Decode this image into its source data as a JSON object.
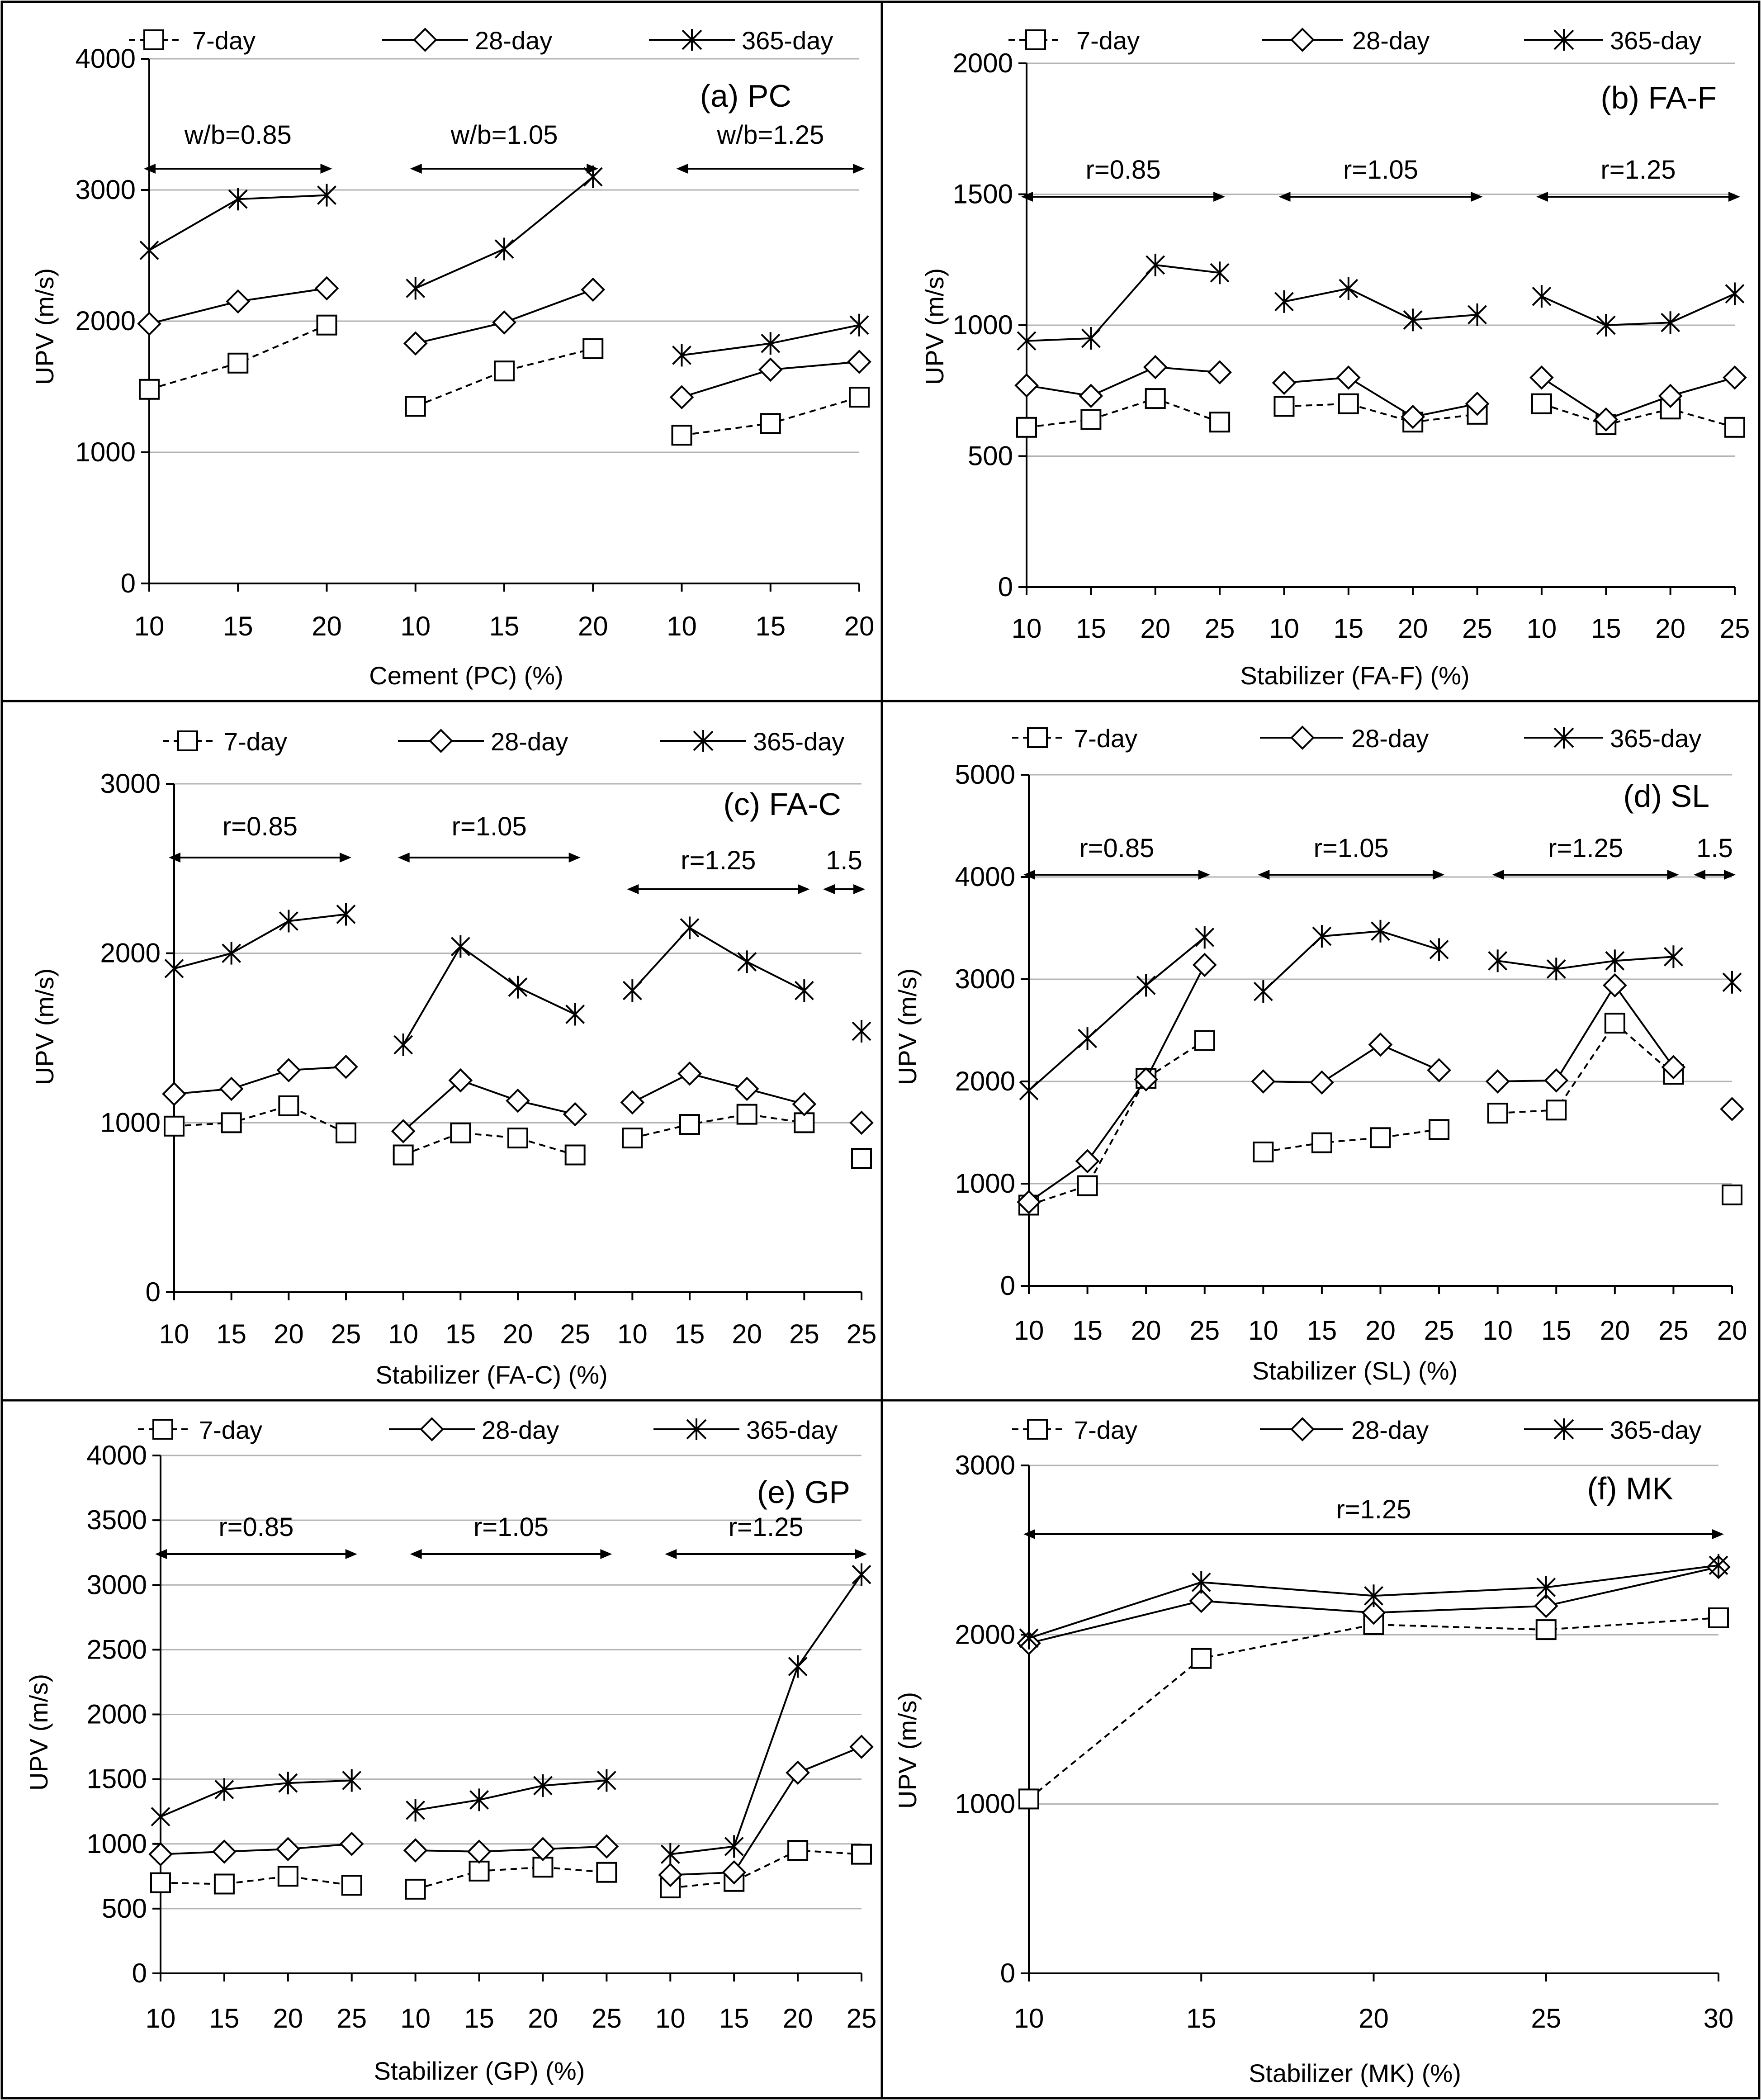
{
  "legend": {
    "day7": "7-day",
    "day28": "28-day",
    "day365": "365-day"
  },
  "chart_data": [
    {
      "type": "line",
      "title": "(a) PC",
      "xlabel": "Cement (PC) (%)",
      "ylabel": "UPV (m/s)",
      "ylim": [
        0,
        4000
      ],
      "yticks": [
        0,
        1000,
        2000,
        3000,
        4000
      ],
      "x_tick_labels": [
        "10",
        "15",
        "20",
        "10",
        "15",
        "20",
        "10",
        "15",
        "20"
      ],
      "groups": [
        {
          "label": "w/b=0.85",
          "indices": [
            0,
            2
          ]
        },
        {
          "label": "w/b=1.05",
          "indices": [
            3,
            5
          ]
        },
        {
          "label": "w/b=1.25",
          "indices": [
            6,
            8
          ]
        }
      ],
      "series": [
        {
          "name": "7-day",
          "segments": [
            [
              0,
              1,
              2
            ],
            [
              3,
              4,
              5
            ],
            [
              6,
              7,
              8
            ]
          ],
          "values": [
            1480,
            1680,
            1970,
            1350,
            1620,
            1790,
            1130,
            1220,
            1420
          ]
        },
        {
          "name": "28-day",
          "segments": [
            [
              0,
              1,
              2
            ],
            [
              3,
              4,
              5
            ],
            [
              6,
              7,
              8
            ]
          ],
          "values": [
            1980,
            2150,
            2250,
            1830,
            1990,
            2240,
            1420,
            1630,
            1690
          ]
        },
        {
          "name": "365-day",
          "segments": [
            [
              0,
              1,
              2
            ],
            [
              3,
              4,
              5
            ],
            [
              6,
              7,
              8
            ]
          ],
          "values": [
            2540,
            2930,
            2960,
            2250,
            2550,
            3100,
            1740,
            1830,
            1970
          ]
        }
      ]
    },
    {
      "type": "line",
      "title": "(b) FA-F",
      "xlabel": "Stabilizer (FA-F) (%)",
      "ylabel": "UPV (m/s)",
      "ylim": [
        0,
        2000
      ],
      "yticks": [
        0,
        500,
        1000,
        1500,
        2000
      ],
      "x_tick_labels": [
        "10",
        "15",
        "20",
        "25",
        "10",
        "15",
        "20",
        "25",
        "10",
        "15",
        "20",
        "25"
      ],
      "groups": [
        {
          "label": "r=0.85",
          "indices": [
            0,
            3
          ]
        },
        {
          "label": "r=1.05",
          "indices": [
            4,
            7
          ]
        },
        {
          "label": "r=1.25",
          "indices": [
            8,
            11
          ]
        }
      ],
      "series": [
        {
          "name": "7-day",
          "segments": [
            [
              0,
              1,
              2,
              3
            ],
            [
              4,
              5,
              6,
              7
            ],
            [
              8,
              9,
              10,
              11
            ]
          ],
          "values": [
            610,
            640,
            720,
            630,
            690,
            700,
            630,
            660,
            700,
            620,
            680,
            610
          ]
        },
        {
          "name": "28-day",
          "segments": [
            [
              0,
              1,
              2,
              3
            ],
            [
              4,
              5,
              6,
              7
            ],
            [
              8,
              9,
              10,
              11
            ]
          ],
          "values": [
            770,
            730,
            840,
            820,
            780,
            800,
            650,
            700,
            800,
            640,
            730,
            800
          ]
        },
        {
          "name": "365-day",
          "segments": [
            [
              0,
              1,
              2,
              3
            ],
            [
              4,
              5,
              6,
              7
            ],
            [
              8,
              9,
              10,
              11
            ]
          ],
          "values": [
            940,
            950,
            1230,
            1200,
            1090,
            1140,
            1020,
            1040,
            1110,
            1000,
            1010,
            1120
          ]
        }
      ]
    },
    {
      "type": "line",
      "title": "(c) FA-C",
      "xlabel": "Stabilizer (FA-C) (%)",
      "ylabel": "UPV (m/s)",
      "ylim": [
        0,
        3000
      ],
      "yticks": [
        0,
        1000,
        2000,
        3000
      ],
      "x_tick_labels": [
        "10",
        "15",
        "20",
        "25",
        "10",
        "15",
        "20",
        "25",
        "10",
        "15",
        "20",
        "25",
        "25"
      ],
      "groups": [
        {
          "label": "r=0.85",
          "indices": [
            0,
            3
          ]
        },
        {
          "label": "r=1.05",
          "indices": [
            4,
            7
          ]
        },
        {
          "label": "r=1.25",
          "indices": [
            8,
            11
          ]
        },
        {
          "label": "1.5",
          "indices": [
            12,
            12
          ]
        }
      ],
      "series": [
        {
          "name": "7-day",
          "segments": [
            [
              0,
              1,
              2,
              3
            ],
            [
              4,
              5,
              6,
              7
            ],
            [
              8,
              9,
              10,
              11
            ],
            [
              12
            ]
          ],
          "values": [
            980,
            1000,
            1100,
            940,
            810,
            940,
            910,
            810,
            910,
            990,
            1050,
            1000,
            790
          ]
        },
        {
          "name": "28-day",
          "segments": [
            [
              0,
              1,
              2,
              3
            ],
            [
              4,
              5,
              6,
              7
            ],
            [
              8,
              9,
              10,
              11
            ],
            [
              12
            ]
          ],
          "values": [
            1170,
            1200,
            1310,
            1330,
            950,
            1250,
            1130,
            1050,
            1120,
            1290,
            1200,
            1110,
            1000
          ]
        },
        {
          "name": "365-day",
          "segments": [
            [
              0,
              1,
              2,
              3
            ],
            [
              4,
              5,
              6,
              7
            ],
            [
              8,
              9,
              10,
              11
            ],
            [
              12
            ]
          ],
          "values": [
            1910,
            2000,
            2190,
            2230,
            1460,
            2040,
            1800,
            1640,
            1780,
            2150,
            1950,
            1780,
            1540
          ]
        }
      ]
    },
    {
      "type": "line",
      "title": "(d) SL",
      "xlabel": "Stabilizer (SL) (%)",
      "ylabel": "UPV (m/s)",
      "ylim": [
        0,
        5000
      ],
      "yticks": [
        0,
        1000,
        2000,
        3000,
        4000,
        5000
      ],
      "x_tick_labels": [
        "10",
        "15",
        "20",
        "25",
        "10",
        "15",
        "20",
        "25",
        "10",
        "15",
        "20",
        "25",
        "20"
      ],
      "groups": [
        {
          "label": "r=0.85",
          "indices": [
            0,
            3
          ]
        },
        {
          "label": "r=1.05",
          "indices": [
            4,
            7
          ]
        },
        {
          "label": "r=1.25",
          "indices": [
            8,
            11
          ]
        },
        {
          "label": "1.5",
          "indices": [
            12,
            12
          ]
        }
      ],
      "series": [
        {
          "name": "7-day",
          "segments": [
            [
              0,
              1,
              2,
              3
            ],
            [
              4,
              5,
              6,
              7
            ],
            [
              8,
              9,
              10,
              11
            ],
            [
              12
            ]
          ],
          "values": [
            790,
            980,
            2030,
            2400,
            1310,
            1400,
            1450,
            1530,
            1690,
            1720,
            2570,
            2070,
            890
          ]
        },
        {
          "name": "28-day",
          "segments": [
            [
              0,
              1,
              2,
              3
            ],
            [
              4,
              5,
              6,
              7
            ],
            [
              8,
              9,
              10,
              11
            ],
            [
              12
            ]
          ],
          "values": [
            820,
            1220,
            2020,
            3140,
            2000,
            1990,
            2360,
            2110,
            2000,
            2010,
            2940,
            2140,
            1730
          ]
        },
        {
          "name": "365-day",
          "segments": [
            [
              0,
              1,
              2,
              3
            ],
            [
              4,
              5,
              6,
              7
            ],
            [
              8,
              9,
              10,
              11
            ],
            [
              12
            ]
          ],
          "values": [
            1910,
            2420,
            2940,
            3410,
            2880,
            3420,
            3470,
            3290,
            3180,
            3100,
            3180,
            3220,
            2970
          ]
        }
      ]
    },
    {
      "type": "line",
      "title": "(e) GP",
      "xlabel": "Stabilizer (GP) (%)",
      "ylabel": "UPV (m/s)",
      "ylim": [
        0,
        4000
      ],
      "yticks": [
        0,
        500,
        1000,
        1500,
        2000,
        2500,
        3000,
        3500,
        4000
      ],
      "x_tick_labels": [
        "10",
        "15",
        "20",
        "25",
        "10",
        "15",
        "20",
        "25",
        "10",
        "15",
        "20",
        "25"
      ],
      "groups": [
        {
          "label": "r=0.85",
          "indices": [
            0,
            3
          ]
        },
        {
          "label": "r=1.05",
          "indices": [
            4,
            7
          ]
        },
        {
          "label": "r=1.25",
          "indices": [
            8,
            11
          ]
        }
      ],
      "series": [
        {
          "name": "7-day",
          "segments": [
            [
              0,
              1,
              2,
              3
            ],
            [
              4,
              5,
              6,
              7
            ],
            [
              8,
              9,
              10,
              11
            ]
          ],
          "values": [
            700,
            690,
            750,
            680,
            650,
            790,
            820,
            780,
            660,
            710,
            950,
            920
          ]
        },
        {
          "name": "28-day",
          "segments": [
            [
              0,
              1,
              2,
              3
            ],
            [
              4,
              5,
              6,
              7
            ],
            [
              8,
              9,
              10,
              11
            ]
          ],
          "values": [
            920,
            940,
            960,
            1000,
            950,
            940,
            960,
            980,
            760,
            780,
            1550,
            1750
          ]
        },
        {
          "name": "365-day",
          "segments": [
            [
              0,
              1,
              2,
              3
            ],
            [
              4,
              5,
              6,
              7
            ],
            [
              8,
              9,
              10,
              11
            ]
          ],
          "values": [
            1210,
            1420,
            1470,
            1490,
            1260,
            1340,
            1450,
            1490,
            920,
            980,
            2370,
            3080
          ]
        }
      ]
    },
    {
      "type": "line",
      "title": "(f) MK",
      "xlabel": "Stabilizer (MK) (%)",
      "ylabel": "UPV (m/s)",
      "ylim": [
        0,
        3000
      ],
      "yticks": [
        0,
        1000,
        2000,
        3000
      ],
      "x_tick_labels": [
        "10",
        "15",
        "20",
        "25",
        "30"
      ],
      "groups": [
        {
          "label": "r=1.25",
          "indices": [
            0,
            4
          ]
        }
      ],
      "series": [
        {
          "name": "7-day",
          "segments": [
            [
              0,
              1,
              2,
              3,
              4
            ]
          ],
          "values": [
            1030,
            1860,
            2060,
            2030,
            2100
          ]
        },
        {
          "name": "28-day",
          "segments": [
            [
              0,
              1,
              2,
              3,
              4
            ]
          ],
          "values": [
            1950,
            2200,
            2130,
            2170,
            2400
          ]
        },
        {
          "name": "365-day",
          "segments": [
            [
              0,
              1,
              2,
              3,
              4
            ]
          ],
          "values": [
            1980,
            2310,
            2230,
            2280,
            2410
          ]
        }
      ]
    }
  ]
}
